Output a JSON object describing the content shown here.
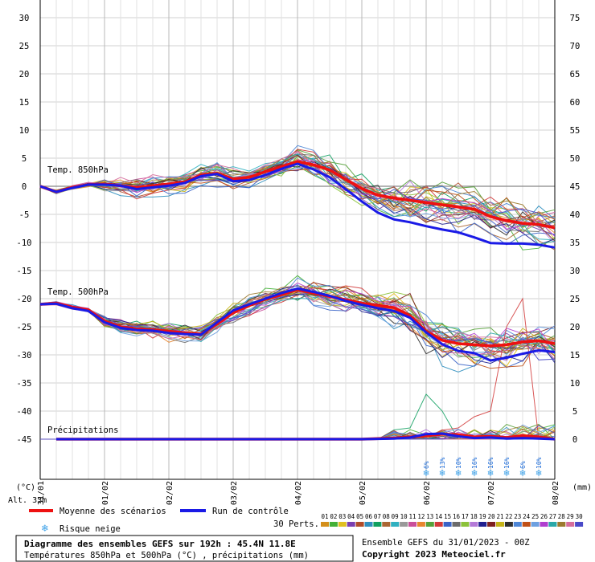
{
  "chart_data": {
    "type": "line",
    "title": "Diagramme des ensembles GEFS sur 192h : 45.4N 11.8E",
    "subtitle": "Températures 850hPa et 500hPa (°C) , précipitations (mm)",
    "left_unit": "(°C)",
    "right_unit": "(mm)",
    "altitude_label": "Alt. 33m",
    "left_ticks": [
      30,
      25,
      20,
      15,
      10,
      5,
      0,
      -5,
      -10,
      -15,
      -20,
      -25,
      -30,
      -35,
      -40,
      -45
    ],
    "right_ticks": [
      75,
      70,
      65,
      60,
      55,
      50,
      45,
      40,
      35,
      30,
      25,
      20,
      15,
      10,
      5,
      0
    ],
    "ylim_left": [
      -45,
      30
    ],
    "ylim_right": [
      0,
      75
    ],
    "x_dates": [
      "31/01",
      "01/02",
      "02/02",
      "03/02",
      "04/02",
      "05/02",
      "06/02",
      "07/02",
      "08/02"
    ],
    "section_labels": [
      "Temp. 850hPa",
      "Temp. 500hPa",
      "Précipitations"
    ],
    "snow_risk": [
      {
        "t": 6.0,
        "label": "6%"
      },
      {
        "t": 6.25,
        "label": "13%"
      },
      {
        "t": 6.5,
        "label": "10%"
      },
      {
        "t": 6.75,
        "label": "16%"
      },
      {
        "t": 7.0,
        "label": "16%"
      },
      {
        "t": 7.25,
        "label": "16%"
      },
      {
        "t": 7.5,
        "label": "6%"
      },
      {
        "t": 7.75,
        "label": "10%"
      }
    ],
    "series": [
      {
        "name": "Moyenne des scénarios",
        "color": "#ee1111",
        "group": "t850",
        "t": [
          0,
          0.25,
          0.5,
          0.75,
          1,
          1.25,
          1.5,
          1.75,
          2,
          2.25,
          2.5,
          2.75,
          3,
          3.25,
          3.5,
          3.75,
          4,
          4.25,
          4.5,
          4.75,
          5,
          5.25,
          5.5,
          5.75,
          6,
          6.25,
          6.5,
          6.75,
          7,
          7.25,
          7.5,
          7.75,
          8
        ],
        "values": [
          0,
          -1,
          -0.2,
          0.3,
          0.4,
          0.1,
          -0.2,
          0.1,
          0.4,
          0.8,
          2,
          2.3,
          1.3,
          1.6,
          2.6,
          3.5,
          4.4,
          3.8,
          2.9,
          1.2,
          -0.4,
          -1.6,
          -2.1,
          -2.5,
          -2.9,
          -3.3,
          -3.7,
          -4.1,
          -5.4,
          -6.1,
          -6.6,
          -6.8,
          -7.4
        ]
      },
      {
        "name": "Run de contrôle",
        "color": "#1a1ae6",
        "group": "t850",
        "t": [
          0,
          0.25,
          0.5,
          0.75,
          1,
          1.25,
          1.5,
          1.75,
          2,
          2.25,
          2.5,
          2.75,
          3,
          3.25,
          3.5,
          3.75,
          4,
          4.25,
          4.5,
          4.75,
          5,
          5.25,
          5.5,
          5.75,
          6,
          6.25,
          6.5,
          6.75,
          7,
          7.25,
          7.5,
          7.75,
          8
        ],
        "values": [
          0,
          -1,
          -0.3,
          0.3,
          0.3,
          0.1,
          -0.5,
          -0.2,
          0.1,
          0.6,
          1.8,
          2.2,
          0.9,
          1.1,
          2.0,
          3.1,
          4.0,
          3.0,
          1.6,
          -0.5,
          -2.7,
          -4.7,
          -5.9,
          -6.4,
          -7.1,
          -7.7,
          -8.2,
          -9.1,
          -10.1,
          -10.2,
          -10.2,
          -10.4,
          -10.9
        ]
      },
      {
        "name": "Moyenne des scénarios",
        "color": "#ee1111",
        "group": "t500",
        "t": [
          0,
          0.25,
          0.5,
          0.75,
          1,
          1.25,
          1.5,
          1.75,
          2,
          2.25,
          2.5,
          2.75,
          3,
          3.25,
          3.5,
          3.75,
          4,
          4.25,
          4.5,
          4.75,
          5,
          5.25,
          5.5,
          5.75,
          6,
          6.25,
          6.5,
          6.75,
          7,
          7.25,
          7.5,
          7.75,
          8
        ],
        "values": [
          -21,
          -20.8,
          -21.5,
          -22,
          -24,
          -25,
          -25.4,
          -25.5,
          -25.8,
          -26.1,
          -26.3,
          -24.5,
          -22.5,
          -21.2,
          -20.1,
          -19.3,
          -18.4,
          -19,
          -19.6,
          -20.2,
          -20.8,
          -21.2,
          -21.6,
          -23,
          -25.8,
          -27.4,
          -28,
          -28.2,
          -28.4,
          -28.2,
          -27.7,
          -27.5,
          -28
        ]
      },
      {
        "name": "Run de contrôle",
        "color": "#1a1ae6",
        "group": "t500",
        "t": [
          0,
          0.25,
          0.5,
          0.75,
          1,
          1.25,
          1.5,
          1.75,
          2,
          2.25,
          2.5,
          2.75,
          3,
          3.25,
          3.5,
          3.75,
          4,
          4.25,
          4.5,
          4.75,
          5,
          5.25,
          5.5,
          5.75,
          6,
          6.25,
          6.5,
          6.75,
          7,
          7.25,
          7.5,
          7.75,
          8
        ],
        "values": [
          -21,
          -20.9,
          -21.7,
          -22.2,
          -24.2,
          -25.2,
          -25.6,
          -25.7,
          -26.1,
          -26.3,
          -26.4,
          -24.2,
          -22.1,
          -21,
          -20,
          -19,
          -18.2,
          -18.8,
          -19.5,
          -20.4,
          -21.1,
          -21.7,
          -22.2,
          -23.4,
          -26,
          -28.1,
          -29.3,
          -29.7,
          -31,
          -30.5,
          -29.8,
          -29.2,
          -29.5
        ]
      },
      {
        "name": "Moyenne des scénarios",
        "color": "#ee1111",
        "group": "precip",
        "t": [
          0,
          1,
          2,
          3,
          4,
          5,
          5.5,
          5.75,
          6,
          6.25,
          6.5,
          6.75,
          7,
          7.25,
          7.5,
          7.75,
          8
        ],
        "values": [
          0,
          0,
          0,
          0,
          0,
          0,
          0.2,
          0.4,
          0.6,
          0.9,
          0.8,
          0.4,
          0.5,
          0.3,
          0.6,
          0.4,
          0
        ]
      },
      {
        "name": "Run de contrôle",
        "color": "#1a1ae6",
        "group": "precip",
        "t": [
          0,
          1,
          2,
          3,
          4,
          5,
          5.5,
          5.75,
          6,
          6.25,
          6.5,
          6.75,
          7,
          7.25,
          7.5,
          7.75,
          8
        ],
        "values": [
          0,
          0,
          0,
          0,
          0,
          0,
          0.1,
          0.3,
          0.9,
          1.0,
          0.5,
          0.2,
          0.3,
          0.1,
          0.2,
          0.1,
          0
        ]
      }
    ],
    "grid": true
  },
  "legend": {
    "mean_label": "Moyenne des scénarios",
    "control_label": "Run de contrôle",
    "snow_label": "Risque neige",
    "perts_label": "30 Perts.",
    "pert_numbers": [
      "01",
      "02",
      "03",
      "04",
      "05",
      "06",
      "07",
      "08",
      "09",
      "10",
      "11",
      "12",
      "13",
      "14",
      "15",
      "16",
      "17",
      "18",
      "19",
      "20",
      "21",
      "22",
      "23",
      "24",
      "25",
      "26",
      "27",
      "28",
      "29",
      "30"
    ],
    "pert_colors": [
      "#d48f1a",
      "#43b036",
      "#e0c020",
      "#7a3fb0",
      "#b04c2a",
      "#2f8fbf",
      "#10a060",
      "#aa6633",
      "#30b0c0",
      "#999999",
      "#ca4f9a",
      "#e8862f",
      "#56a13a",
      "#d23a3a",
      "#3a64c8",
      "#6b6b6b",
      "#8cc23a",
      "#b47ad8",
      "#1f1f8f",
      "#7e2020",
      "#c6b418",
      "#2e2e2e",
      "#4d86d6",
      "#bf5018",
      "#6da0e0",
      "#b03fcf",
      "#2aa8a8",
      "#9c7a2e",
      "#d66d9c",
      "#4a4ac8"
    ]
  },
  "footer": {
    "title": "Diagramme des ensembles GEFS sur 192h : 45.4N 11.8E",
    "subtitle": "Températures 850hPa et 500hPa (°C) , précipitations (mm)",
    "run": "Ensemble GEFS du 31/01/2023 - 00Z",
    "copyright": "Copyright 2023 Meteociel.fr"
  }
}
